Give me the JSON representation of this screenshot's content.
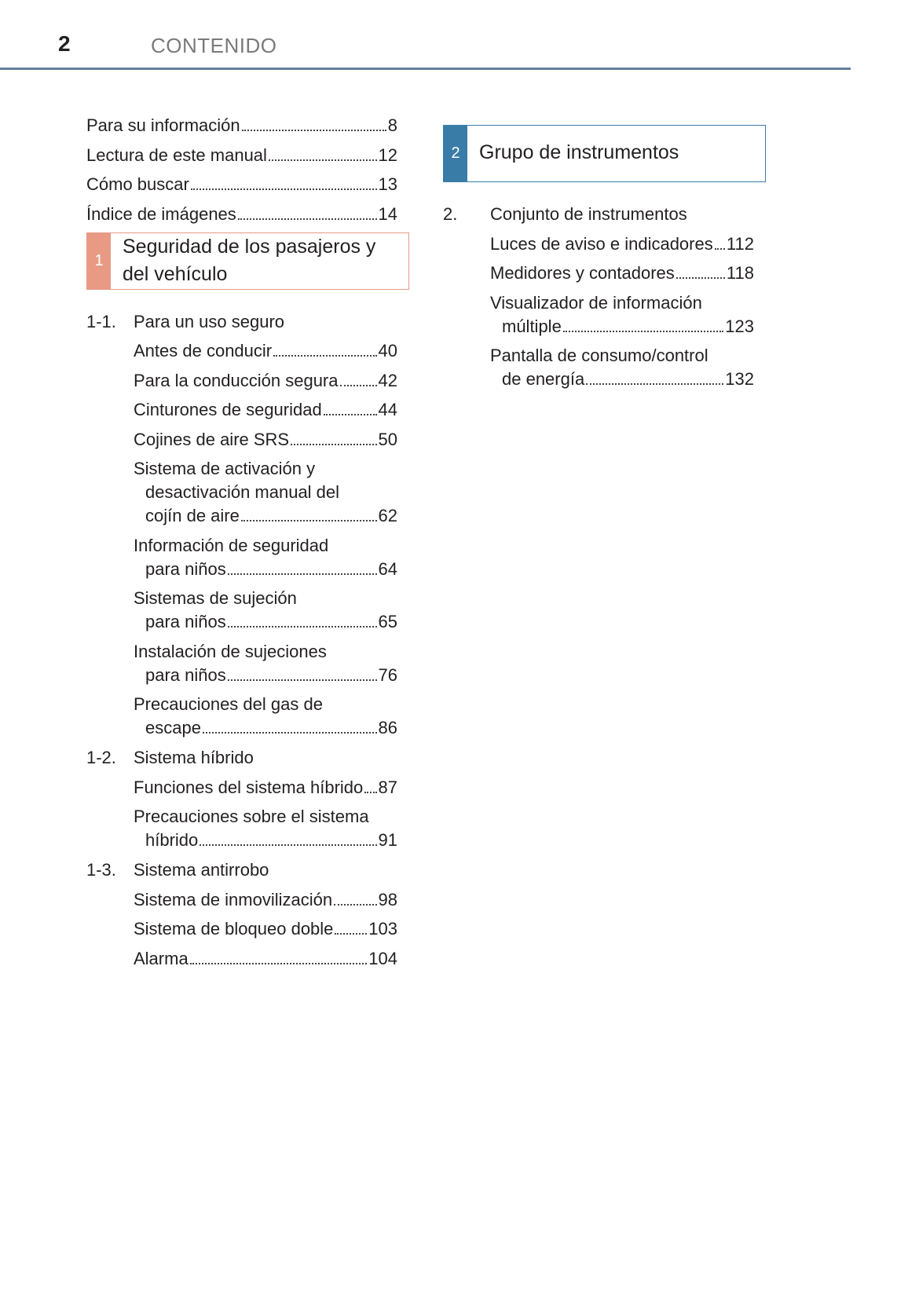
{
  "header": {
    "page_number": "2",
    "title": "CONTENIDO"
  },
  "colors": {
    "rule": "#627f9c",
    "chapter1": "#e89a85",
    "chapter2": "#3a7ca8"
  },
  "front_matter": [
    {
      "lines": [
        "Para su información"
      ],
      "page": "8"
    },
    {
      "lines": [
        "Lectura de este manual"
      ],
      "page": "12"
    },
    {
      "lines": [
        "Cómo buscar"
      ],
      "page": "13"
    },
    {
      "lines": [
        "Índice de imágenes"
      ],
      "page": "14"
    }
  ],
  "chapters": [
    {
      "number": "1",
      "title_lines": [
        "Seguridad de los pasajeros y",
        "del vehículo"
      ],
      "sections": [
        {
          "number": "1-1.",
          "title": "Para un uso seguro",
          "entries": [
            {
              "lines": [
                "Antes de conducir"
              ],
              "page": "40"
            },
            {
              "lines": [
                "Para la conducción segura"
              ],
              "page": "42"
            },
            {
              "lines": [
                "Cinturones de seguridad"
              ],
              "page": "44"
            },
            {
              "lines": [
                "Cojines de aire SRS"
              ],
              "page": "50"
            },
            {
              "lines": [
                "Sistema de activación y",
                "desactivación manual del",
                "cojín de aire"
              ],
              "page": "62"
            },
            {
              "lines": [
                "Información de seguridad",
                "para niños"
              ],
              "page": "64"
            },
            {
              "lines": [
                "Sistemas de sujeción",
                "para niños"
              ],
              "page": "65"
            },
            {
              "lines": [
                "Instalación de sujeciones",
                "para niños"
              ],
              "page": "76"
            },
            {
              "lines": [
                "Precauciones del gas de",
                "escape"
              ],
              "page": "86"
            }
          ]
        },
        {
          "number": "1-2.",
          "title": "Sistema híbrido",
          "entries": [
            {
              "lines": [
                "Funciones del sistema híbrido"
              ],
              "page": "87"
            },
            {
              "lines": [
                "Precauciones sobre el sistema",
                "híbrido"
              ],
              "page": "91"
            }
          ]
        },
        {
          "number": "1-3.",
          "title": "Sistema antirrobo",
          "entries": [
            {
              "lines": [
                "Sistema de inmovilización"
              ],
              "page": "98"
            },
            {
              "lines": [
                "Sistema de bloqueo doble"
              ],
              "page": "103"
            },
            {
              "lines": [
                "Alarma"
              ],
              "page": "104"
            }
          ]
        }
      ]
    },
    {
      "number": "2",
      "title_lines": [
        "Grupo de instrumentos"
      ],
      "sections": [
        {
          "number": "2.",
          "title": "Conjunto de instrumentos",
          "entries": [
            {
              "lines": [
                "Luces de aviso e indicadores"
              ],
              "page": "112"
            },
            {
              "lines": [
                "Medidores y contadores"
              ],
              "page": "118"
            },
            {
              "lines": [
                "Visualizador de información",
                "múltiple"
              ],
              "page": "123"
            },
            {
              "lines": [
                "Pantalla de consumo/control",
                "de energía"
              ],
              "page": "132"
            }
          ]
        }
      ]
    }
  ]
}
